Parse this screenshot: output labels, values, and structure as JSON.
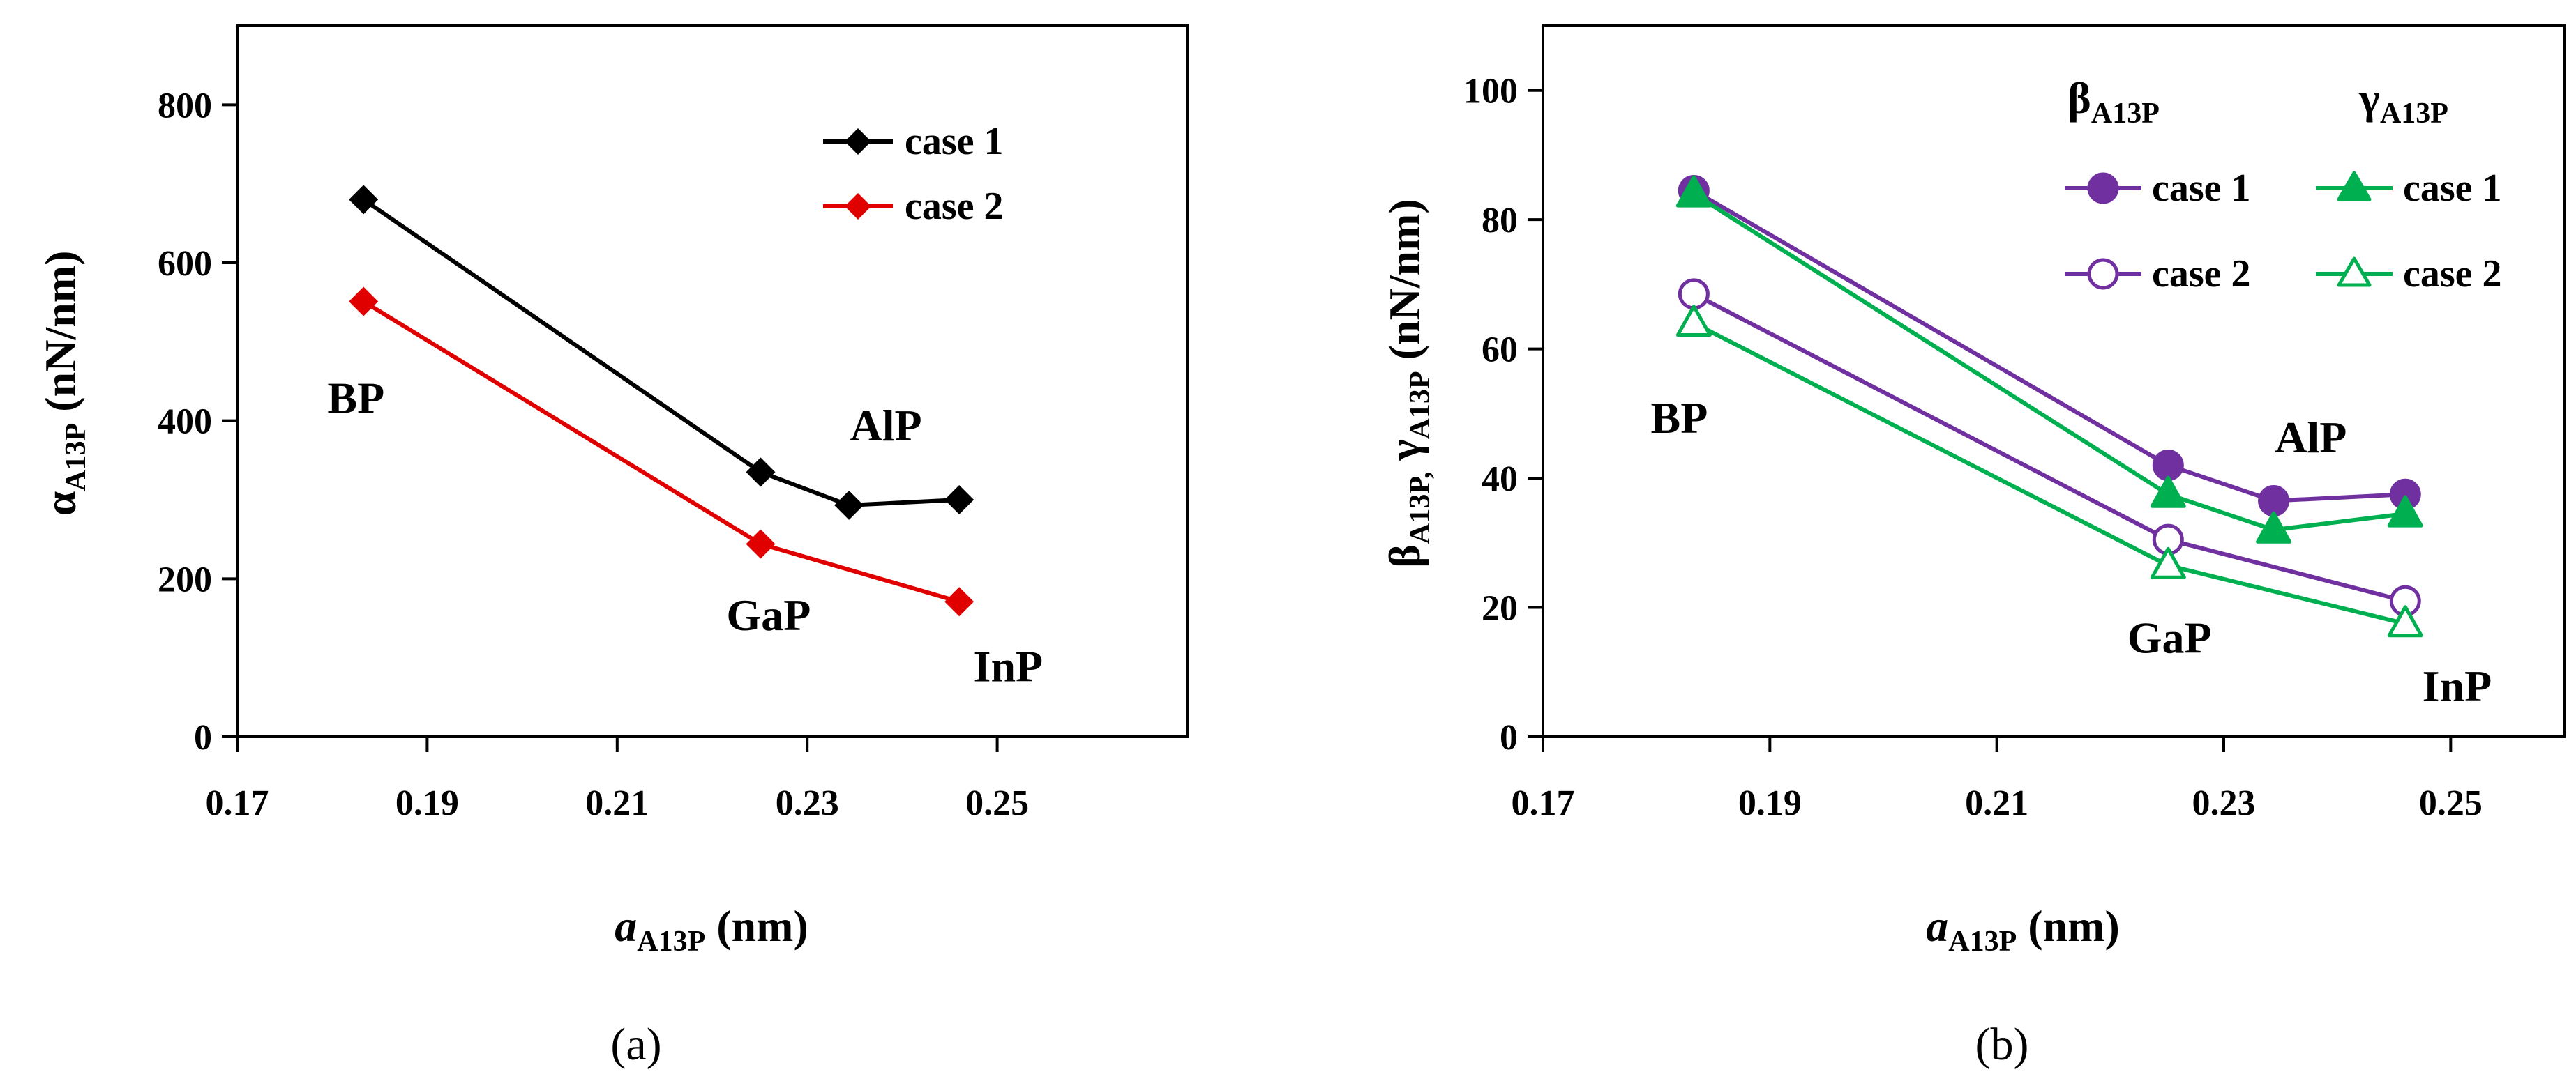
{
  "chart_data": [
    {
      "id": "a",
      "type": "line",
      "panel_label": "(a)",
      "xlabel": {
        "italic": "a",
        "sub": "A13P",
        "rest": " (nm)"
      },
      "ylabel": {
        "greek": "α",
        "sub": "A13P",
        "rest": " (nN/nm)"
      },
      "xlim": [
        0.17,
        0.27
      ],
      "ylim": [
        0,
        900
      ],
      "xticks": [
        "0.17",
        "0.19",
        "0.21",
        "0.23",
        "0.25"
      ],
      "xtick_values": [
        0.17,
        0.19,
        0.21,
        0.23,
        0.25
      ],
      "yticks": [
        "0",
        "200",
        "400",
        "600",
        "800"
      ],
      "ytick_values": [
        0,
        200,
        400,
        600,
        800
      ],
      "legend_position": "top-right",
      "series": [
        {
          "name": "case 1",
          "color": "#000000",
          "marker": "diamond",
          "x": [
            0.1833,
            0.2251,
            0.2344,
            0.246
          ],
          "y": [
            680,
            335,
            293,
            300
          ]
        },
        {
          "name": "case 2",
          "color": "#e00000",
          "marker": "diamond",
          "x": [
            0.1833,
            0.2251,
            0.246
          ],
          "y": [
            551,
            244,
            171
          ]
        }
      ],
      "annotations": [
        {
          "text": "BP",
          "x": 0.1795,
          "y": 410
        },
        {
          "text": "AlP",
          "x": 0.2345,
          "y": 375
        },
        {
          "text": "GaP",
          "x": 0.2215,
          "y": 135
        },
        {
          "text": "InP",
          "x": 0.2475,
          "y": 70
        }
      ]
    },
    {
      "id": "b",
      "type": "line",
      "panel_label": "(b)",
      "xlabel": {
        "italic": "a",
        "sub": "A13P",
        "rest": " (nm)"
      },
      "ylabel": {
        "greek1": "β",
        "sub1": "A13P,",
        "greek2": " γ",
        "sub2": "A13P",
        "rest": " (nN/nm)"
      },
      "xlim": [
        0.17,
        0.26
      ],
      "ylim": [
        0,
        110
      ],
      "xticks": [
        "0.17",
        "0.19",
        "0.21",
        "0.23",
        "0.25"
      ],
      "xtick_values": [
        0.17,
        0.19,
        0.21,
        0.23,
        0.25
      ],
      "yticks": [
        "0",
        "20",
        "40",
        "60",
        "80",
        "100"
      ],
      "ytick_values": [
        0,
        20,
        40,
        60,
        80,
        100
      ],
      "legend_position": "top-right",
      "legend_headers": [
        {
          "greek": "β",
          "sub": "A13P"
        },
        {
          "greek": "γ",
          "sub": "A13P"
        }
      ],
      "series": [
        {
          "name": "case 1",
          "group": "β",
          "color": "#7030a0",
          "marker": "circle",
          "filled": true,
          "x": [
            0.1833,
            0.2251,
            0.2344,
            0.246
          ],
          "y": [
            84.5,
            42.0,
            36.5,
            37.5
          ]
        },
        {
          "name": "case 2",
          "group": "β",
          "color": "#7030a0",
          "marker": "circle",
          "filled": false,
          "x": [
            0.1833,
            0.2251,
            0.246
          ],
          "y": [
            68.5,
            30.5,
            21.0
          ]
        },
        {
          "name": "case 1",
          "group": "γ",
          "color": "#00b050",
          "marker": "triangle",
          "filled": true,
          "x": [
            0.1833,
            0.2251,
            0.2344,
            0.246
          ],
          "y": [
            84.0,
            37.5,
            32.0,
            34.5
          ]
        },
        {
          "name": "case 2",
          "group": "γ",
          "color": "#00b050",
          "marker": "triangle",
          "filled": false,
          "x": [
            0.1833,
            0.2251,
            0.246
          ],
          "y": [
            64.0,
            26.5,
            17.5
          ]
        }
      ],
      "annotations": [
        {
          "text": "BP",
          "x": 0.1795,
          "y": 47
        },
        {
          "text": "AlP",
          "x": 0.2345,
          "y": 44
        },
        {
          "text": "GaP",
          "x": 0.2215,
          "y": 13
        },
        {
          "text": "InP",
          "x": 0.2475,
          "y": 5.5
        }
      ]
    }
  ]
}
